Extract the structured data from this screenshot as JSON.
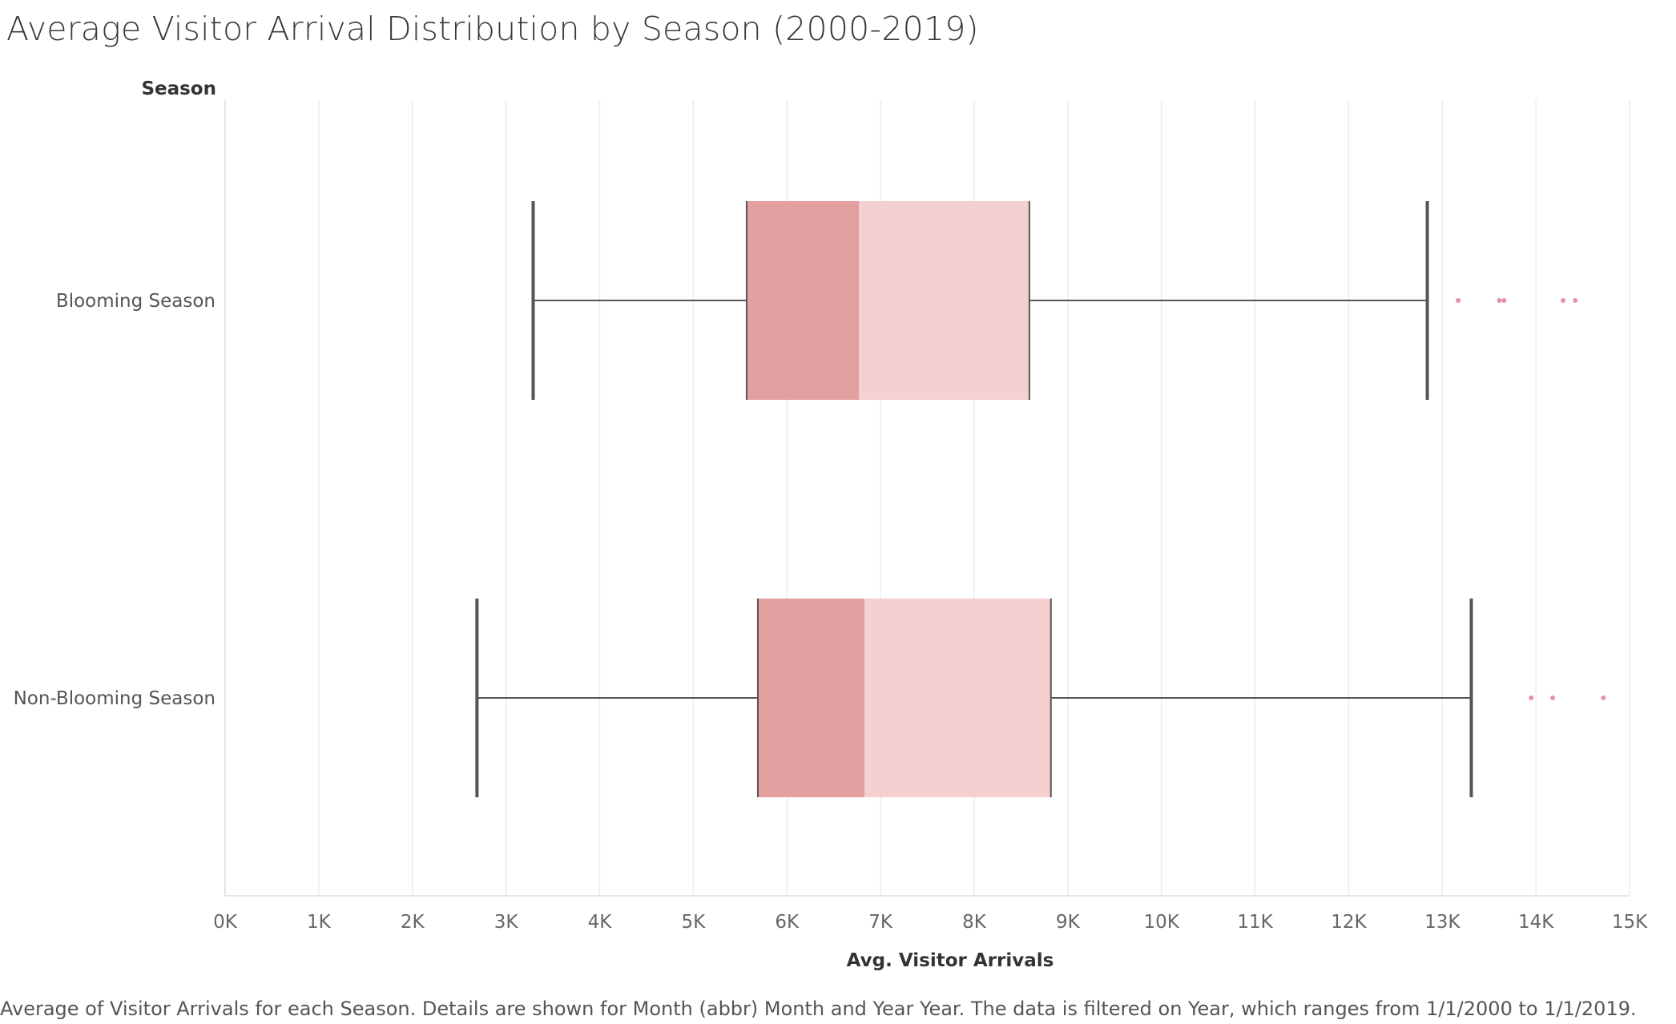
{
  "chart_data": {
    "type": "boxplot",
    "title": "Average Visitor Arrival Distribution by Season (2000-2019)",
    "ylabel": "Season",
    "xlabel": "Avg. Visitor Arrivals",
    "xlim": [
      0,
      15000
    ],
    "x_ticks": [
      0,
      1000,
      2000,
      3000,
      4000,
      5000,
      6000,
      7000,
      8000,
      9000,
      10000,
      11000,
      12000,
      13000,
      14000,
      15000
    ],
    "x_tick_labels": [
      "0K",
      "1K",
      "2K",
      "3K",
      "4K",
      "5K",
      "6K",
      "7K",
      "8K",
      "9K",
      "10K",
      "11K",
      "12K",
      "13K",
      "14K",
      "15K"
    ],
    "grid": true,
    "categories": [
      "Blooming Season",
      "Non-Blooming Season"
    ],
    "series": [
      {
        "category": "Blooming Season",
        "whisker_low": 3290,
        "q1": 5570,
        "median": 6770,
        "q3": 8590,
        "whisker_high": 12840,
        "outliers": [
          13170,
          13610,
          13660,
          14290,
          14420
        ]
      },
      {
        "category": "Non-Blooming Season",
        "whisker_low": 2690,
        "q1": 5690,
        "median": 6830,
        "q3": 8820,
        "whisker_high": 13310,
        "outliers": [
          13950,
          14180,
          14720
        ]
      }
    ],
    "colors": {
      "lower_box": "#e2a0a0",
      "upper_box": "#f5d0d1",
      "whisker": "#555555",
      "outlier": "#e891a5",
      "grid": "#ececec"
    }
  },
  "caption": "Average of Visitor Arrivals for each Season.  Details are shown for Month (abbr) Month and Year Year. The data is filtered on Year, which ranges from 1/1/2000 to 1/1/2019."
}
